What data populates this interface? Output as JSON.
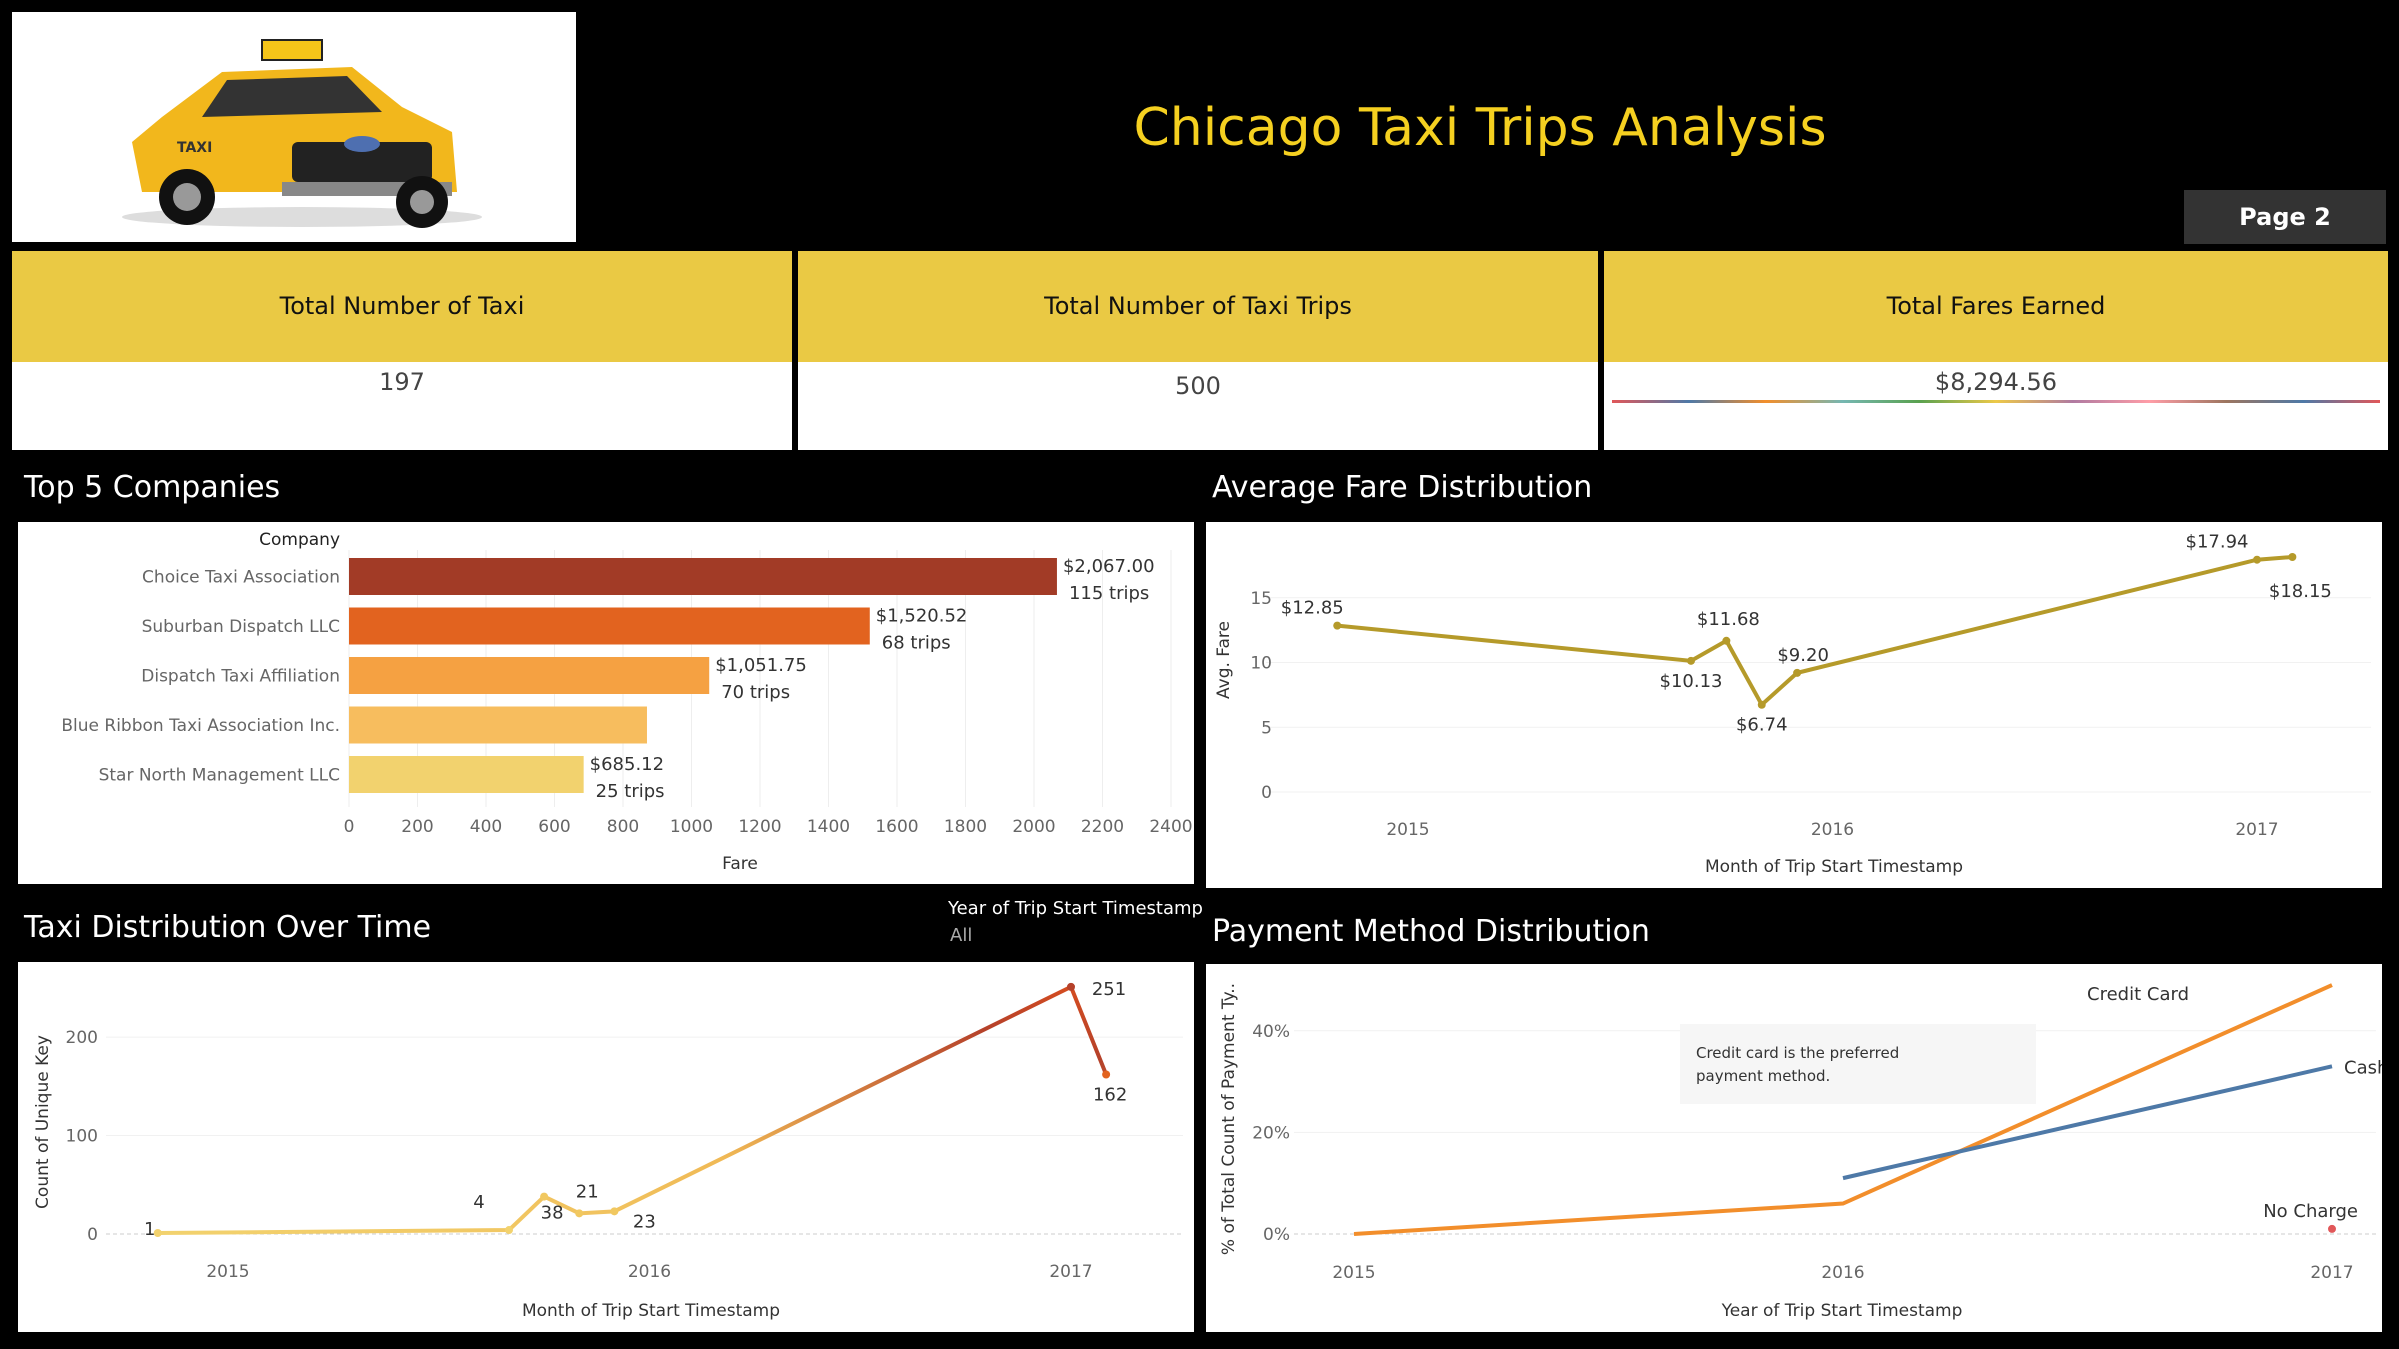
{
  "header": {
    "title": "Chicago Taxi Trips Analysis",
    "page_button": "Page 2"
  },
  "kpis": [
    {
      "label": "Total Number of Taxi",
      "value": "197"
    },
    {
      "label": "Total Number of Taxi Trips",
      "value": "500"
    },
    {
      "label": "Total Fares Earned",
      "value": "$8,294.56"
    }
  ],
  "sections": {
    "top_companies": "Top 5 Companies",
    "avg_fare": "Average Fare Distribution",
    "taxi_time": "Taxi Distribution Over Time",
    "payment": "Payment Method Distribution"
  },
  "filter": {
    "label": "Year of Trip Start Timestamp",
    "value": "All"
  },
  "chart_data": [
    {
      "id": "top_companies",
      "type": "bar",
      "orientation": "horizontal",
      "row_header": "Company",
      "xlabel": "Fare",
      "xlim": [
        0,
        2400
      ],
      "xticks": [
        0,
        200,
        400,
        600,
        800,
        1000,
        1200,
        1400,
        1600,
        1800,
        2000,
        2200,
        2400
      ],
      "categories": [
        "Choice Taxi Association",
        "Suburban Dispatch LLC",
        "Dispatch Taxi Affiliation",
        "Blue Ribbon Taxi Association Inc.",
        "Star North Management LLC"
      ],
      "values": [
        2067.0,
        1520.52,
        1051.75,
        870,
        685.12
      ],
      "labels": [
        "$2,067.00",
        "$1,520.52",
        "$1,051.75",
        "",
        "$685.12"
      ],
      "trips": [
        "115 trips",
        "68 trips",
        "70 trips",
        "",
        "25 trips"
      ],
      "colors": [
        "#a23b26",
        "#e2631f",
        "#f5a142",
        "#f7bd5e",
        "#f2d26e"
      ]
    },
    {
      "id": "avg_fare",
      "type": "line",
      "xlabel": "Month of Trip Start Timestamp",
      "ylabel": "Avg. Fare",
      "ylim": [
        0,
        19
      ],
      "yticks": [
        0,
        5,
        10,
        15
      ],
      "xticks": [
        "2015",
        "2016",
        "2017"
      ],
      "color": "#b59a2a",
      "points": [
        {
          "x": "2014-11",
          "y": 12.85,
          "label": "$12.85"
        },
        {
          "x": "2015-09",
          "y": 10.13,
          "label": "$10.13"
        },
        {
          "x": "2015-10",
          "y": 11.68,
          "label": "$11.68"
        },
        {
          "x": "2015-11",
          "y": 6.74,
          "label": "$6.74"
        },
        {
          "x": "2015-12",
          "y": 9.2,
          "label": "$9.20"
        },
        {
          "x": "2017-01",
          "y": 17.94,
          "label": "$17.94"
        },
        {
          "x": "2017-02",
          "y": 18.15,
          "label": "$18.15"
        }
      ]
    },
    {
      "id": "taxi_time",
      "type": "line",
      "xlabel": "Month of Trip Start Timestamp",
      "ylabel": "Count of Unique Key",
      "ylim": [
        0,
        260
      ],
      "yticks": [
        0,
        100,
        200
      ],
      "xticks": [
        "2015",
        "2016",
        "2017"
      ],
      "points": [
        {
          "x": "2014-11",
          "y": 1,
          "label": "1"
        },
        {
          "x": "2015-09",
          "y": 4,
          "label": "4"
        },
        {
          "x": "2015-10",
          "y": 38,
          "label": "38"
        },
        {
          "x": "2015-11",
          "y": 21,
          "label": "21"
        },
        {
          "x": "2015-12",
          "y": 23,
          "label": "23"
        },
        {
          "x": "2017-01",
          "y": 251,
          "label": "251"
        },
        {
          "x": "2017-02",
          "y": 162,
          "label": "162"
        }
      ]
    },
    {
      "id": "payment",
      "type": "line",
      "xlabel": "Year of Trip Start Timestamp",
      "ylabel": "% of Total Count of Payment Ty..",
      "ylim": [
        0,
        0.5
      ],
      "yticks": [
        "0%",
        "20%",
        "40%"
      ],
      "xticks": [
        "2015",
        "2016",
        "2017"
      ],
      "annotation": "Credit card is the preferred payment method.",
      "series": [
        {
          "name": "Credit Card",
          "color": "#f28e2b",
          "points": [
            {
              "x": 2015,
              "y": 0.0
            },
            {
              "x": 2016,
              "y": 0.06
            },
            {
              "x": 2017,
              "y": 0.49
            }
          ]
        },
        {
          "name": "Cash",
          "color": "#4e79a7",
          "points": [
            {
              "x": 2016,
              "y": 0.11
            },
            {
              "x": 2017,
              "y": 0.33
            }
          ]
        },
        {
          "name": "No Charge",
          "color": "#e15759",
          "points": [
            {
              "x": 2017,
              "y": 0.01
            }
          ]
        }
      ]
    }
  ]
}
